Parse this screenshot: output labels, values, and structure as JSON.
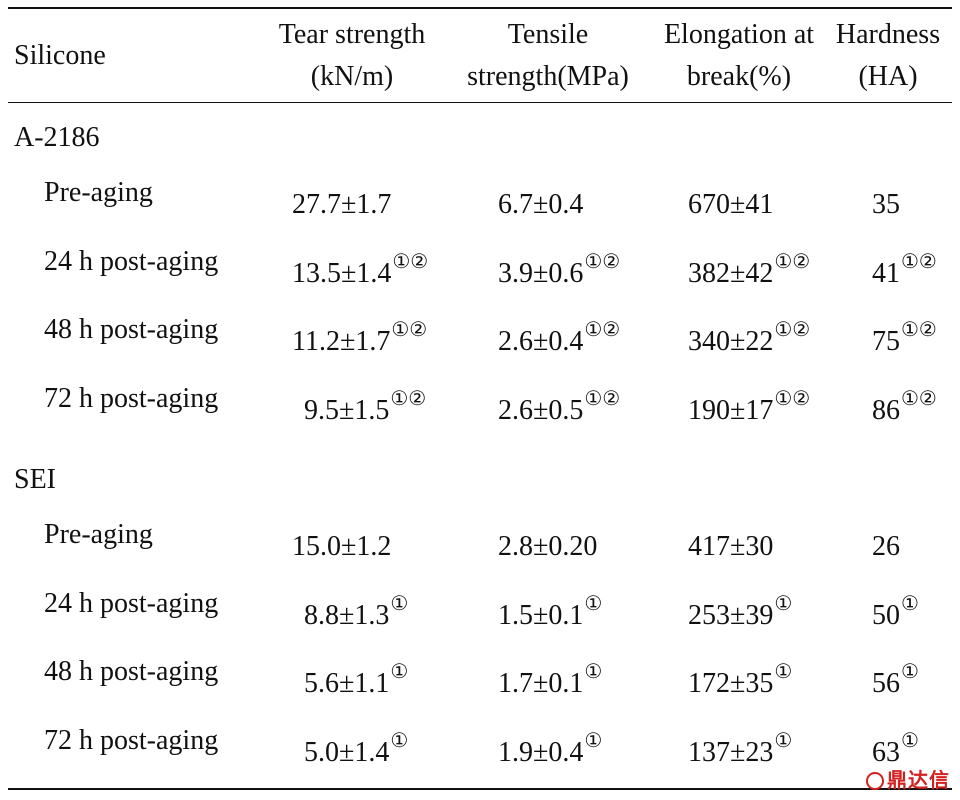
{
  "headers": {
    "silicone": "Silicone",
    "tear": [
      "Tear strength",
      "(kN/m)"
    ],
    "tensile": [
      "Tensile",
      "strength(MPa)"
    ],
    "elongation": [
      "Elongation at",
      "break(%)"
    ],
    "hardness": [
      "Hardness",
      "(HA)"
    ]
  },
  "groups": [
    {
      "name": "A-2186",
      "rows": [
        {
          "label": "Pre-aging",
          "tear": "27.7±1.7",
          "tear_sup": "",
          "tensile": "6.7±0.4",
          "tensile_sup": "",
          "elong": "670±41",
          "elong_sup": "",
          "hard": "35",
          "hard_sup": ""
        },
        {
          "label": "24 h post-aging",
          "tear": "13.5±1.4",
          "tear_sup": "①②",
          "tensile": "3.9±0.6",
          "tensile_sup": "①②",
          "elong": "382±42",
          "elong_sup": "①②",
          "hard": "41",
          "hard_sup": "①②"
        },
        {
          "label": "48 h post-aging",
          "tear": "11.2±1.7",
          "tear_sup": "①②",
          "tensile": "2.6±0.4",
          "tensile_sup": "①②",
          "elong": "340±22",
          "elong_sup": "①②",
          "hard": "75",
          "hard_sup": "①②"
        },
        {
          "label": "72 h post-aging",
          "tear": "9.5±1.5",
          "tear_sup": "①②",
          "tensile": "2.6±0.5",
          "tensile_sup": "①②",
          "elong": "190±17",
          "elong_sup": "①②",
          "hard": "86",
          "hard_sup": "①②"
        }
      ]
    },
    {
      "name": "SEI",
      "rows": [
        {
          "label": "Pre-aging",
          "tear": "15.0±1.2",
          "tear_sup": "",
          "tensile": "2.8±0.20",
          "tensile_sup": "",
          "elong": "417±30",
          "elong_sup": "",
          "hard": "26",
          "hard_sup": ""
        },
        {
          "label": "24 h post-aging",
          "tear": "8.8±1.3",
          "tear_sup": "①",
          "tensile": "1.5±0.1",
          "tensile_sup": "①",
          "elong": "253±39",
          "elong_sup": "①",
          "hard": "50",
          "hard_sup": "①"
        },
        {
          "label": "48 h post-aging",
          "tear": "5.6±1.1",
          "tear_sup": "①",
          "tensile": "1.7±0.1",
          "tensile_sup": "①",
          "elong": "172±35",
          "elong_sup": "①",
          "hard": "56",
          "hard_sup": "①"
        },
        {
          "label": "72 h post-aging",
          "tear": "5.0±1.4",
          "tear_sup": "①",
          "tensile": "1.9±0.4",
          "tensile_sup": "①",
          "elong": "137±23",
          "elong_sup": "①",
          "hard": "63",
          "hard_sup": "①"
        }
      ]
    }
  ],
  "watermark": "鼎达信"
}
